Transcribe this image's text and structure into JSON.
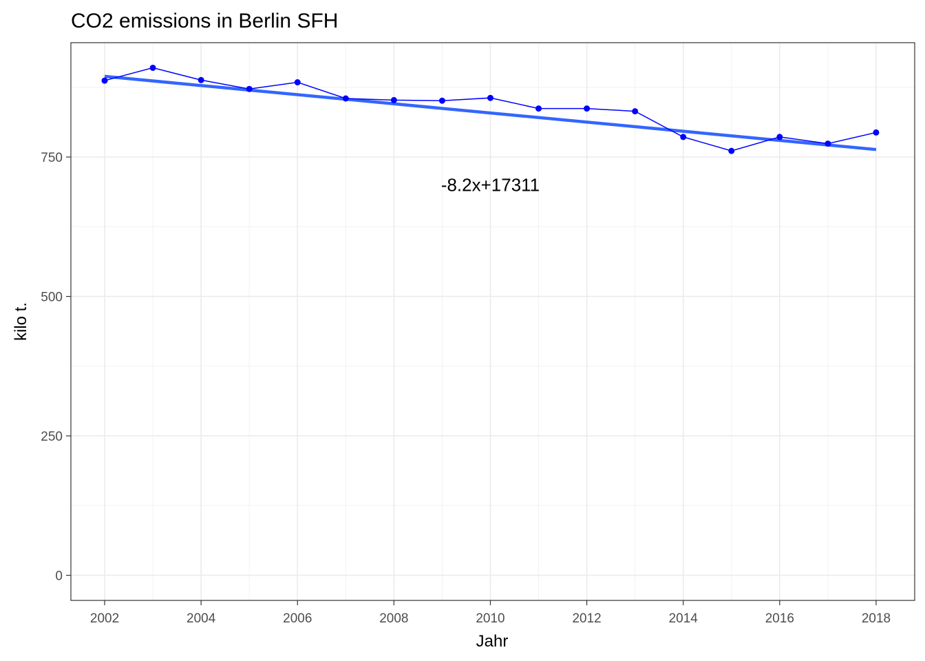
{
  "chart_data": {
    "type": "line",
    "title": "CO2 emissions in Berlin SFH",
    "xlabel": "Jahr",
    "ylabel": "kilo t.",
    "x_ticks": [
      "2002",
      "2004",
      "2006",
      "2008",
      "2010",
      "2012",
      "2014",
      "2016",
      "2018"
    ],
    "y_ticks": [
      "0",
      "250",
      "500",
      "750"
    ],
    "xlim": [
      2001.3,
      2018.8
    ],
    "ylim": [
      -45,
      955
    ],
    "grid": true,
    "series": [
      {
        "x": [
          2002,
          2003,
          2004,
          2005,
          2006,
          2007,
          2008,
          2009,
          2010,
          2011,
          2012,
          2013,
          2014,
          2015,
          2016,
          2017,
          2018
        ],
        "y": [
          887,
          910,
          888,
          872,
          884,
          855,
          852,
          851,
          856,
          837,
          837,
          832,
          786,
          761,
          786,
          774,
          794
        ],
        "color": "#0000ff"
      }
    ],
    "trend": {
      "slope": -8.2,
      "intercept": 17311,
      "color": "#3366ff"
    },
    "annotation": {
      "text": "-8.2x+17311",
      "x": 2010,
      "y": 700
    }
  }
}
